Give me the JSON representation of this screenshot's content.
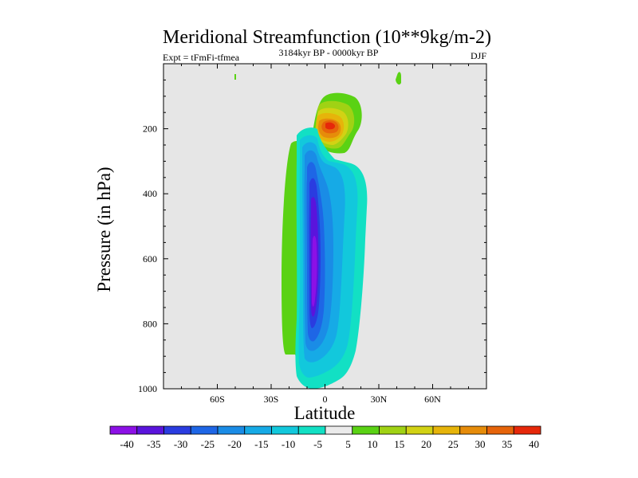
{
  "chart_data": {
    "type": "contour",
    "title": "Meridional Streamfunction (10**9kg/m-2)",
    "subtitle_left": "Expt = tFmFi-tfmea",
    "subtitle_center": "3184kyr BP - 0000kyr BP",
    "subtitle_right": "DJF",
    "xlabel": "Latitude",
    "ylabel": "Pressure (in hPa)",
    "xlim": [
      -90,
      90
    ],
    "ylim": [
      0,
      1000
    ],
    "y_inverted": true,
    "xticks": [
      {
        "value": -60,
        "label": "60S"
      },
      {
        "value": -30,
        "label": "30S"
      },
      {
        "value": 0,
        "label": "0"
      },
      {
        "value": 30,
        "label": "30N"
      },
      {
        "value": 60,
        "label": "60N"
      }
    ],
    "yticks": [
      {
        "value": 200,
        "label": "200"
      },
      {
        "value": 400,
        "label": "400"
      },
      {
        "value": 600,
        "label": "600"
      },
      {
        "value": 800,
        "label": "800"
      },
      {
        "value": 1000,
        "label": "1000"
      }
    ],
    "background_color": "#e6e6e6",
    "levels": [
      -40,
      -35,
      -30,
      -25,
      -20,
      -15,
      -10,
      -5,
      5,
      10,
      15,
      20,
      25,
      30,
      35,
      40
    ],
    "colorbar_colors": [
      "#8c10e6",
      "#5a14dc",
      "#2a3ce0",
      "#1e66e6",
      "#1a8ce6",
      "#16aae6",
      "#12c8dc",
      "#12e0c4",
      "#ebebeb",
      "#5ad214",
      "#a0d214",
      "#d2d214",
      "#e6b40a",
      "#e68c0a",
      "#e6640a",
      "#e6280a"
    ],
    "features": [
      {
        "name": "sh-positive-band",
        "lat": [
          -20,
          -14
        ],
        "p": [
          240,
          900
        ],
        "level": 5
      },
      {
        "name": "tiny-positive-left",
        "lat": [
          -50.5,
          -49.5
        ],
        "p": [
          30,
          50
        ],
        "level": 5
      },
      {
        "name": "tiny-positive-right",
        "lat": [
          41,
          43
        ],
        "p": [
          20,
          60
        ],
        "level": 5
      },
      {
        "name": "upper-positive-cell",
        "center": [
          3,
          175
        ],
        "max": 32
      },
      {
        "name": "tropical-negative-cell",
        "center": [
          -4,
          620
        ],
        "min": -42
      }
    ]
  }
}
